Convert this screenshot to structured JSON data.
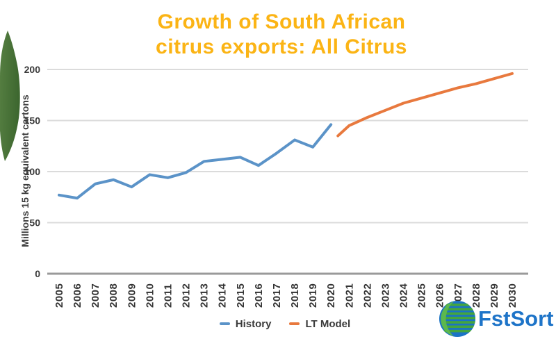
{
  "title": {
    "line1": "Growth of South African",
    "line2": "citrus exports: All Citrus",
    "color": "#FBB415"
  },
  "logo": {
    "text": "FstSort",
    "text_color": "#1E74C8",
    "globe_blue": "#1B73C5",
    "globe_green": "#44A53F",
    "crescent_green": "#5CB84E"
  },
  "decoration": {
    "leaf_color_light": "#547F41",
    "leaf_color_dark": "#3D672F"
  },
  "axis_style": {
    "grid_color": "#DBDBDB",
    "axis_color": "#9A9A9A",
    "tick_label_color": "#3A3A3A"
  },
  "chart_data": {
    "type": "line",
    "title": "Growth of South African citrus exports: All Citrus",
    "ylabel": "Millions 15 kg equivalent cartons",
    "xlabel": "",
    "ylim": [
      0,
      200
    ],
    "yticks": [
      0,
      50,
      100,
      150,
      200
    ],
    "xticks": [
      2005,
      2006,
      2007,
      2008,
      2009,
      2010,
      2011,
      2012,
      2013,
      2014,
      2015,
      2016,
      2017,
      2018,
      2019,
      2020,
      2021,
      2022,
      2023,
      2024,
      2025,
      2026,
      2027,
      2028,
      2029,
      2030
    ],
    "grid": "horizontal",
    "legend_position": "bottom",
    "series": [
      {
        "name": "History",
        "color": "#5B93C8",
        "x": [
          2005,
          2006,
          2007,
          2008,
          2009,
          2010,
          2011,
          2012,
          2013,
          2014,
          2015,
          2016,
          2017,
          2018,
          2019,
          2020
        ],
        "values": [
          77,
          74,
          88,
          92,
          85,
          97,
          94,
          99,
          110,
          112,
          114,
          106,
          118,
          131,
          124,
          146
        ]
      },
      {
        "name": "LT Model",
        "color": "#E8793E",
        "x": [
          2020,
          2021,
          2022,
          2023,
          2024,
          2025,
          2026,
          2027,
          2028,
          2029,
          2030
        ],
        "values": [
          135,
          145,
          153,
          160,
          167,
          172,
          177,
          182,
          186,
          191,
          196
        ]
      }
    ]
  }
}
